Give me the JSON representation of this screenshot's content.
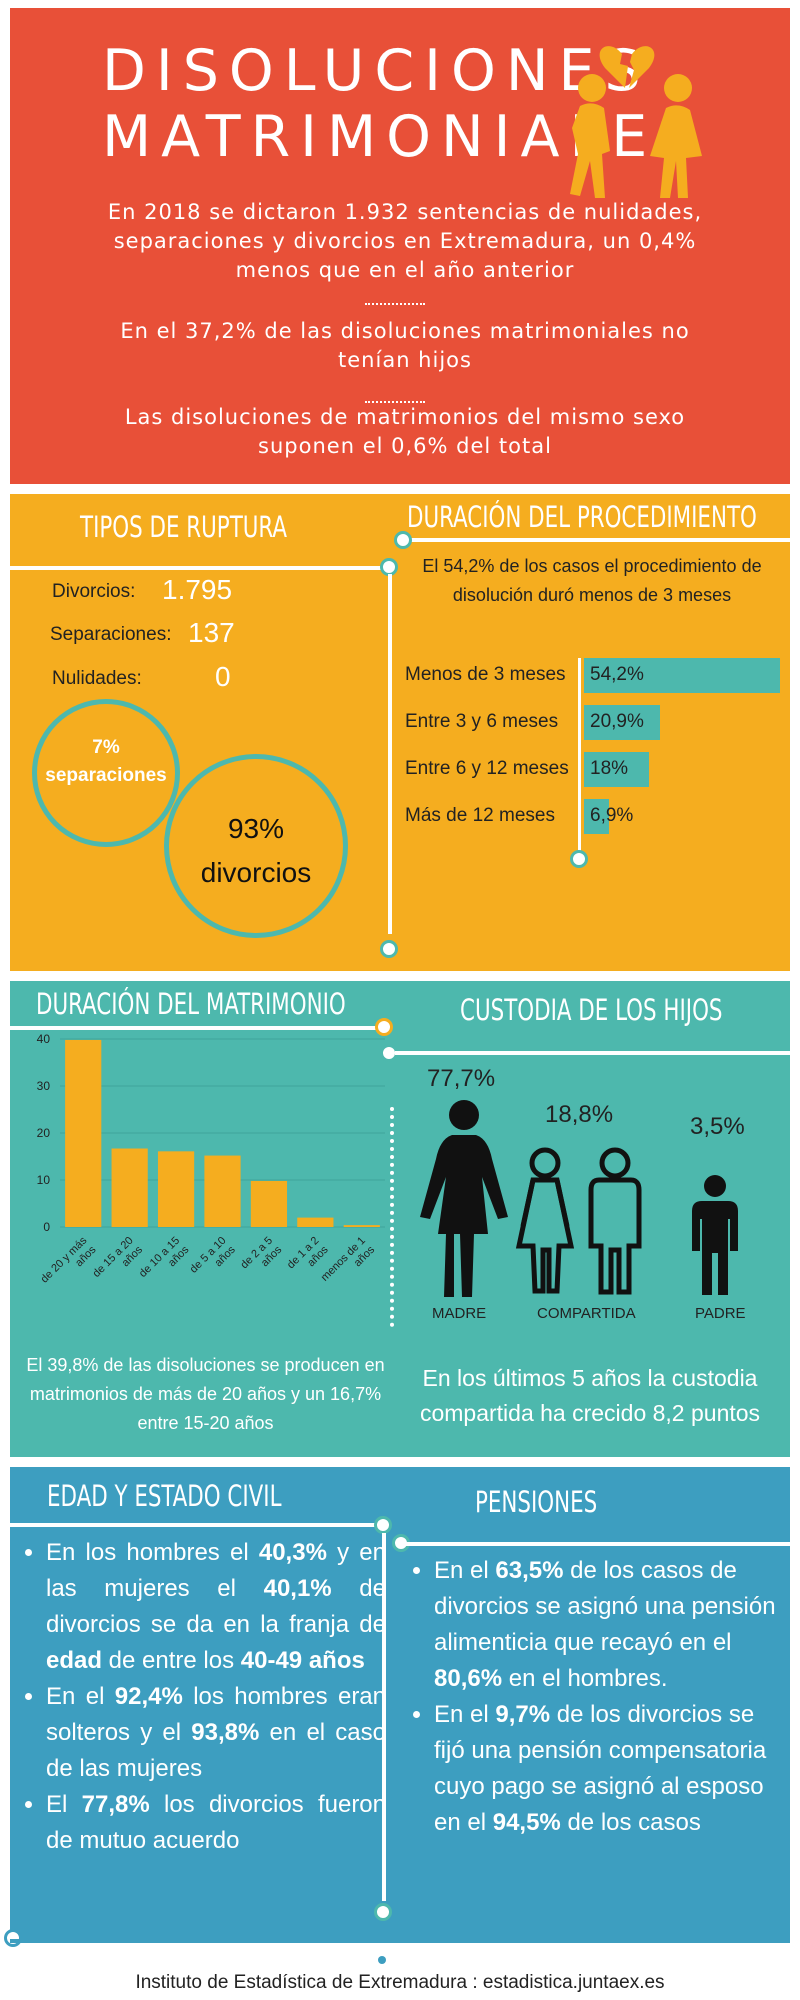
{
  "header": {
    "title_line1": "DISOLUCIONES",
    "title_line2": "MATRIMONIALES",
    "p1": "En 2018 se dictaron 1.932 sentencias de nulidades, separaciones y divorcios en Extremadura, un 0,4% menos que en el año anterior",
    "p2": "En el 37,2% de las disoluciones matrimoniales no tenían hijos",
    "p3": "Las disoluciones de matrimonios del mismo sexo suponen el 0,6% del total",
    "icon": "broken-heart-couple-icon"
  },
  "tipos": {
    "title": "TIPOS DE RUPTURA",
    "rows": [
      {
        "label": "Divorcios:",
        "value": "1.795"
      },
      {
        "label": "Separaciones:",
        "value": "137"
      },
      {
        "label": "Nulidades:",
        "value": "0"
      }
    ],
    "circle_small_line1": "7%",
    "circle_small_line2": "separaciones",
    "circle_big_line1": "93%",
    "circle_big_line2": "divorcios"
  },
  "duracion_proc": {
    "title": "DURACIÓN DEL PROCEDIMIENTO",
    "subtitle": "El 54,2% de los casos el procedimiento de disolución duró menos de 3 meses",
    "rows": [
      {
        "label": "Menos de 3 meses",
        "value": "54,2%",
        "pct": 54.2
      },
      {
        "label": "Entre 3 y 6 meses",
        "value": "20,9%",
        "pct": 20.9
      },
      {
        "label": "Entre 6 y 12 meses",
        "value": "18%",
        "pct": 18
      },
      {
        "label": "Más de 12 meses",
        "value": "6,9%",
        "pct": 6.9
      }
    ]
  },
  "matrimonio": {
    "title": "DURACIÓN DEL MATRIMONIO",
    "note": "El 39,8% de las disoluciones se producen en matrimonios de más de  20 años y un 16,7% entre 15-20 años"
  },
  "chart_data": {
    "type": "bar",
    "categories": [
      "de 20 y más años",
      "de 15 a 20 años",
      "de 10 a 15 años",
      "de 5 a 10 años",
      "de 2 a 5 años",
      "de 1 a 2 años",
      "menos de 1 años"
    ],
    "values": [
      39.8,
      16.7,
      16.1,
      15.2,
      9.8,
      2.0,
      0.4
    ],
    "yticks": [
      "0",
      "10",
      "20",
      "30",
      "40"
    ],
    "ylim": [
      0,
      40
    ],
    "title": "",
    "xlabel": "",
    "ylabel": "",
    "bar_color": "#f5ad1f"
  },
  "custodia": {
    "title": "CUSTODIA DE LOS HIJOS",
    "items": [
      {
        "pct": "77,7%",
        "label": "MADRE",
        "icon": "woman-icon"
      },
      {
        "pct": "18,8%",
        "label": "COMPARTIDA",
        "icon": "couple-icon"
      },
      {
        "pct": "3,5%",
        "label": "PADRE",
        "icon": "man-icon"
      }
    ],
    "note": "En los últimos 5 años la custodia compartida ha crecido 8,2 puntos"
  },
  "edad": {
    "title": "EDAD Y ESTADO CIVIL",
    "b1": [
      "En los hombres el ",
      "40,3%",
      " y en las mujeres el ",
      "40,1%",
      " de divorcios se da en la franja de ",
      "edad",
      " de entre los ",
      "40-49 años"
    ],
    "b2": [
      "En el ",
      "92,4%",
      "  los hombres eran solteros y el ",
      "93,8%",
      " en el caso de las mujeres"
    ],
    "b3": [
      "El ",
      "77,8%",
      " los divorcios fueron de mutuo acuerdo"
    ]
  },
  "pensiones": {
    "title": "PENSIONES",
    "b1": [
      "En el ",
      "63,5%",
      " de los casos de divorcios se asignó una pensión alimenticia que recayó en el ",
      "80,6%",
      " en el hombres."
    ],
    "b2": [
      "En el ",
      "9,7%",
      " de los divorcios se fijó una pensión compensatoria cuyo pago se asignó al esposo en el ",
      "94,5%",
      " de los casos"
    ]
  },
  "footer": "Instituto de Estadística de Extremadura : estadistica.juntaex.es",
  "colors": {
    "red": "#e85038",
    "orange": "#f5ad1f",
    "teal": "#4db8ad",
    "blue": "#3d9ec0"
  }
}
